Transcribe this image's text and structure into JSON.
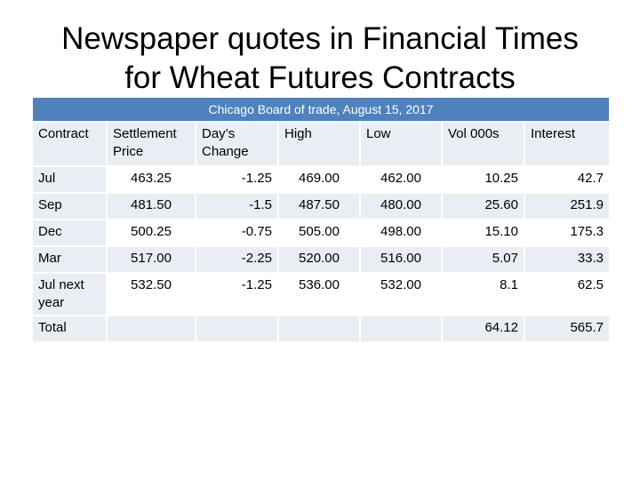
{
  "title": [
    "Newspaper quotes in Financial Times",
    "for Wheat Futures Contracts"
  ],
  "table": {
    "caption": "Chicago Board of trade, August 15,  2017",
    "header": [
      "Contract",
      "Settlement Price",
      "Day’s Change",
      "High",
      "Low",
      "Vol 000s",
      "Interest"
    ],
    "rows": [
      [
        "Jul",
        "463.25",
        "-1.25",
        "469.00",
        "462.00",
        "10.25",
        "42.7"
      ],
      [
        "Sep",
        "481.50",
        "-1.5",
        "487.50",
        "480.00",
        "25.60",
        "251.9"
      ],
      [
        "Dec",
        "500.25",
        "-0.75",
        "505.00",
        "498.00",
        "15.10",
        "175.3"
      ],
      [
        "Mar",
        "517.00",
        "-2.25",
        "520.00",
        "516.00",
        "5.07",
        "33.3"
      ],
      [
        "Jul next year",
        "532.50",
        "-1.25",
        "536.00",
        "532.00",
        "8.1",
        "62.5"
      ],
      [
        "Total",
        null,
        null,
        null,
        null,
        "64.12",
        "565.7"
      ]
    ]
  }
}
